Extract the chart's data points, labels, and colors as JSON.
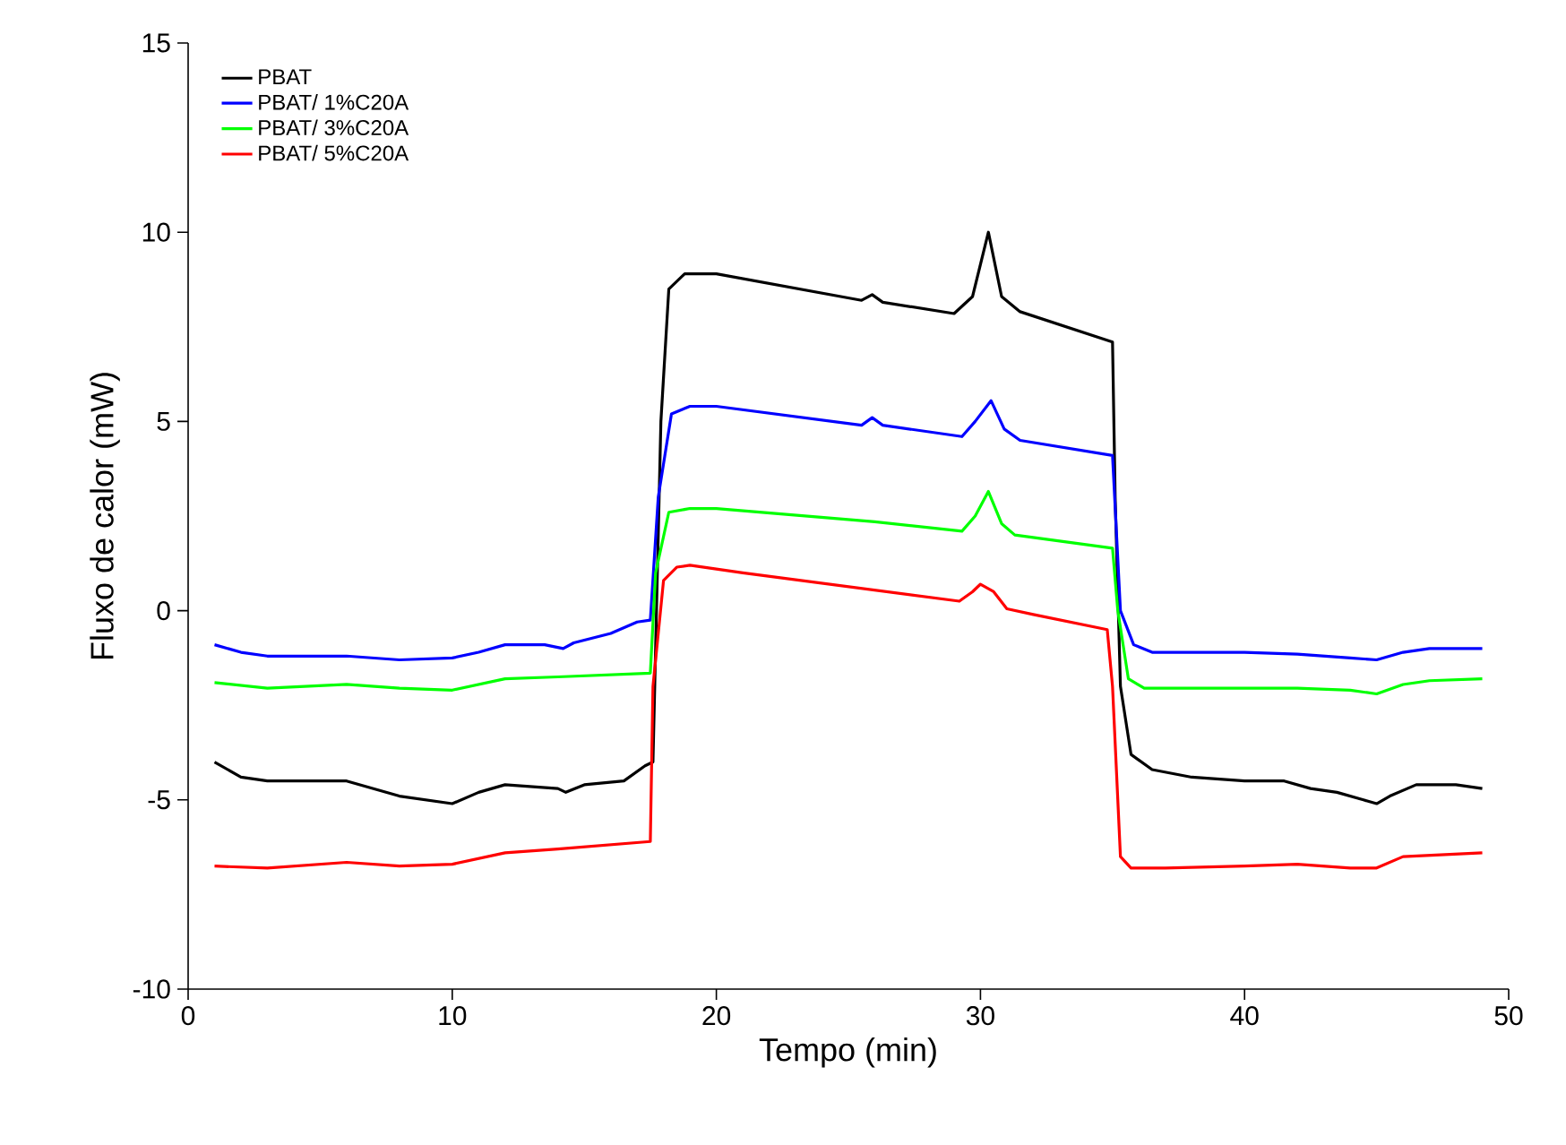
{
  "chart_data": {
    "type": "line",
    "xlabel": "Tempo (min)",
    "ylabel": "Fluxo de calor (mW)",
    "xlim": [
      0,
      50
    ],
    "xticks": [
      0,
      10,
      20,
      30,
      40,
      50
    ],
    "ylim": [
      -10,
      15
    ],
    "yticks": [
      -10,
      -5,
      0,
      5,
      10,
      15
    ],
    "grid": false,
    "legend": "top left",
    "marker": "none",
    "line_style": "solid",
    "series": [
      {
        "name": "PBAT",
        "color": "#000000",
        "x": [
          1,
          2,
          3,
          6,
          8,
          10,
          11,
          12,
          14,
          14.3,
          15,
          16.5,
          17.3,
          17.6,
          17.9,
          18.2,
          18.8,
          20,
          25.5,
          25.9,
          26.3,
          29,
          29.7,
          30.3,
          30.8,
          31.5,
          35,
          35.1,
          35.3,
          35.7,
          36.5,
          38,
          40,
          41.5,
          42.5,
          43.5,
          44.5,
          45,
          45.5,
          46.5,
          48,
          49
        ],
        "values": [
          -4.0,
          -4.4,
          -4.5,
          -4.5,
          -4.9,
          -5.1,
          -4.8,
          -4.6,
          -4.7,
          -4.8,
          -4.6,
          -4.5,
          -4.1,
          -4.0,
          5,
          8.5,
          8.9,
          8.9,
          8.2,
          8.35,
          8.15,
          7.85,
          8.3,
          10.0,
          8.3,
          7.9,
          7.1,
          3,
          -2,
          -3.8,
          -4.2,
          -4.4,
          -4.5,
          -4.5,
          -4.7,
          -4.8,
          -5.0,
          -5.1,
          -4.9,
          -4.6,
          -4.6,
          -4.7
        ]
      },
      {
        "name": "PBAT/ 1%C20A",
        "color": "#0000ff",
        "x": [
          1,
          2,
          3,
          6,
          8,
          10,
          11,
          12,
          13.5,
          14.2,
          14.6,
          16,
          17,
          17.5,
          17.8,
          18.3,
          19,
          20,
          25.5,
          25.9,
          26.3,
          29.3,
          29.8,
          30.4,
          30.9,
          31.5,
          35,
          35.3,
          35.8,
          36.5,
          40,
          42,
          44,
          45,
          46,
          47,
          49
        ],
        "values": [
          -0.9,
          -1.1,
          -1.2,
          -1.2,
          -1.3,
          -1.25,
          -1.1,
          -0.9,
          -0.9,
          -1.0,
          -0.85,
          -0.6,
          -0.3,
          -0.25,
          3,
          5.2,
          5.4,
          5.4,
          4.9,
          5.1,
          4.9,
          4.6,
          5,
          5.55,
          4.8,
          4.5,
          4.1,
          0,
          -0.9,
          -1.1,
          -1.1,
          -1.15,
          -1.25,
          -1.3,
          -1.1,
          -1.0,
          -1.0
        ]
      },
      {
        "name": "PBAT/ 3%C20A",
        "color": "#00ff00",
        "x": [
          1,
          3,
          6,
          8,
          10,
          12,
          14,
          17.5,
          17.7,
          18.2,
          19,
          20,
          26,
          29.3,
          29.8,
          30.3,
          30.8,
          31.3,
          35,
          35.2,
          35.6,
          36.2,
          40,
          42,
          44,
          45,
          46,
          47,
          49
        ],
        "values": [
          -1.9,
          -2.05,
          -1.95,
          -2.05,
          -2.1,
          -1.8,
          -1.75,
          -1.65,
          1,
          2.6,
          2.7,
          2.7,
          2.35,
          2.1,
          2.5,
          3.15,
          2.3,
          2.0,
          1.65,
          0,
          -1.8,
          -2.05,
          -2.05,
          -2.05,
          -2.1,
          -2.2,
          -1.95,
          -1.85,
          -1.8
        ]
      },
      {
        "name": "PBAT/ 5%C20A",
        "color": "#ff0000",
        "x": [
          1,
          3,
          6,
          8,
          10,
          12,
          14,
          17.5,
          17.6,
          18,
          18.5,
          19,
          21,
          29.2,
          29.7,
          30.0,
          30.5,
          31,
          32,
          34.8,
          35,
          35.3,
          35.7,
          37,
          40,
          42,
          44,
          45,
          46,
          49
        ],
        "values": [
          -6.75,
          -6.8,
          -6.65,
          -6.75,
          -6.7,
          -6.4,
          -6.3,
          -6.1,
          -2,
          0.8,
          1.15,
          1.2,
          1.0,
          0.25,
          0.5,
          0.7,
          0.5,
          0.05,
          -0.1,
          -0.5,
          -2,
          -6.5,
          -6.8,
          -6.8,
          -6.75,
          -6.7,
          -6.8,
          -6.8,
          -6.5,
          -6.4
        ]
      }
    ]
  }
}
